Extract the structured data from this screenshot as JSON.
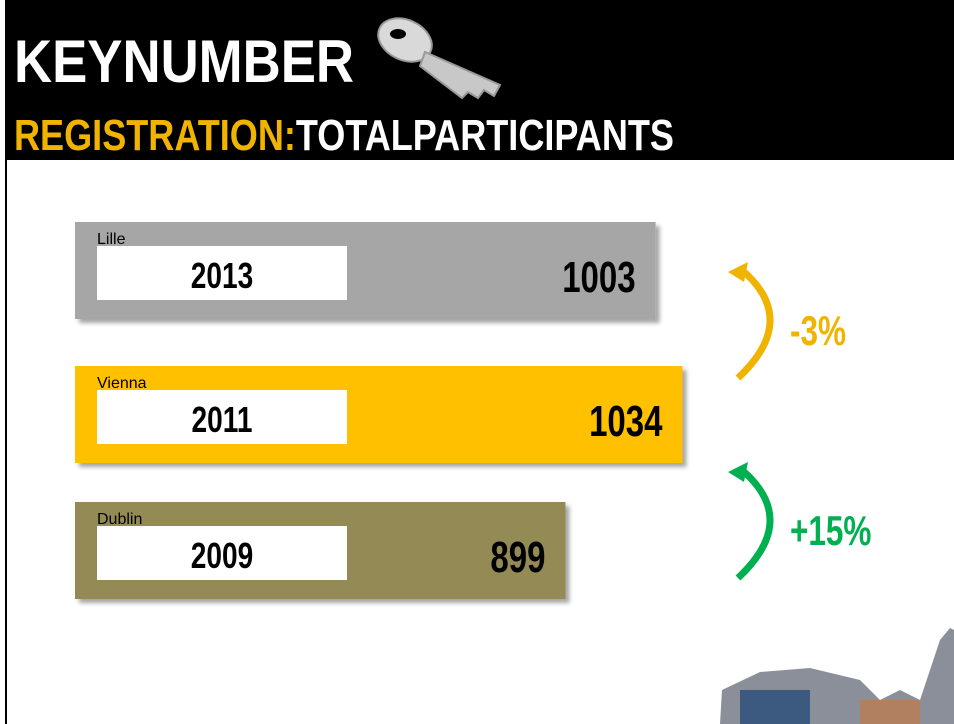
{
  "chart_data": {
    "type": "bar",
    "title": "KEYNUMBER",
    "subtitle_prefix": "REGISTRATION:",
    "subtitle": "TOTALPARTICIPANTS",
    "bars": [
      {
        "city": "Lille",
        "year": "2013",
        "value": 1003,
        "color": "#a6a6a6"
      },
      {
        "city": "Vienna",
        "year": "2011",
        "value": 1034,
        "color": "#ffc000"
      },
      {
        "city": "Dublin",
        "year": "2009",
        "value": 899,
        "color": "#948a54"
      }
    ],
    "changes": [
      {
        "label": "-3%",
        "color": "#f0b400"
      },
      {
        "label": "+15%",
        "color": "#00b050"
      }
    ]
  }
}
